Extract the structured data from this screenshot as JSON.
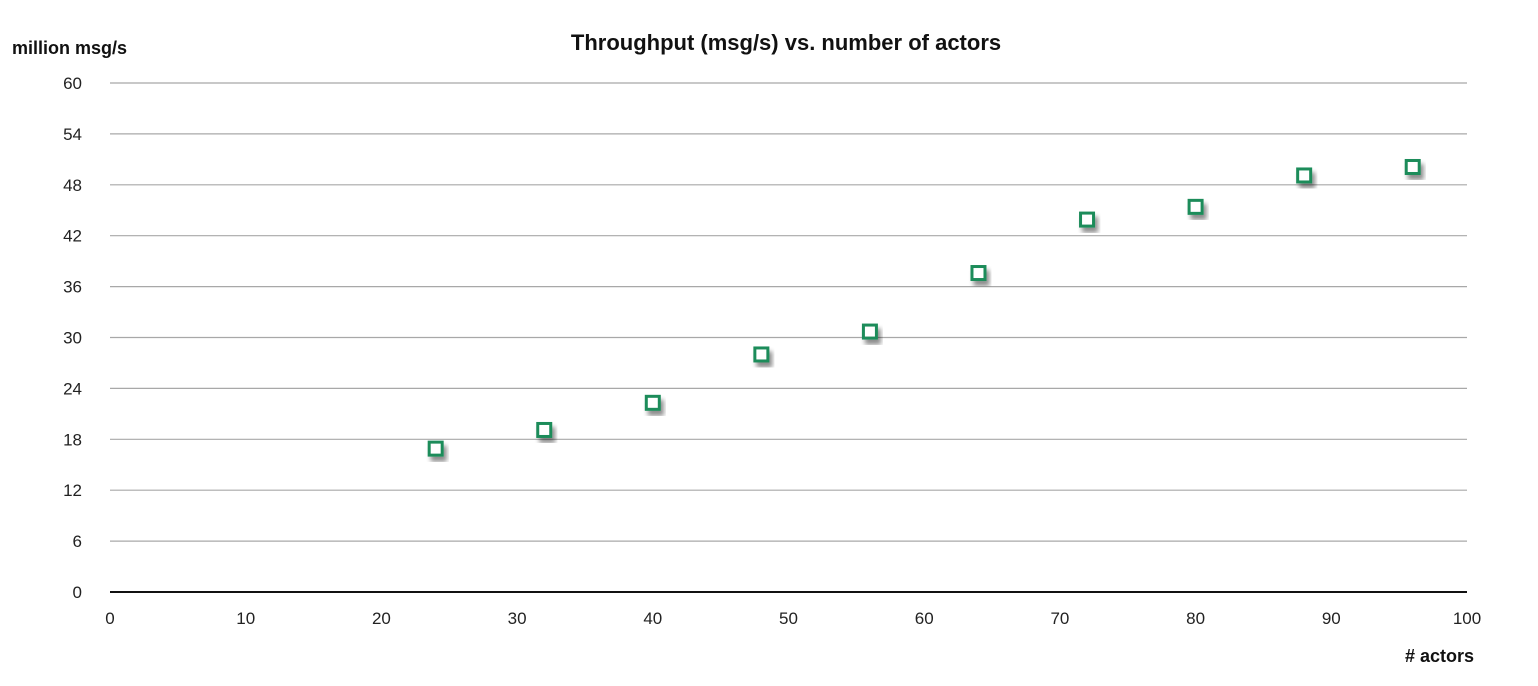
{
  "chart_data": {
    "type": "scatter",
    "title": "Throughput (msg/s) vs. number of actors",
    "xlabel": "# actors",
    "ylabel": "million msg/s",
    "xlim": [
      0,
      100
    ],
    "ylim": [
      0,
      60
    ],
    "x_ticks": [
      0,
      10,
      20,
      30,
      40,
      50,
      60,
      70,
      80,
      90,
      100
    ],
    "y_ticks": [
      0,
      6,
      12,
      18,
      24,
      30,
      36,
      42,
      48,
      54,
      60
    ],
    "grid": true,
    "marker_color": "#1e8c5a",
    "series": [
      {
        "x": [
          24,
          32,
          40,
          48,
          56,
          64,
          72,
          80,
          88,
          96
        ],
        "y": [
          16.9,
          19.1,
          22.3,
          28.0,
          30.7,
          37.6,
          43.9,
          45.4,
          49.1,
          50.1
        ]
      }
    ]
  }
}
